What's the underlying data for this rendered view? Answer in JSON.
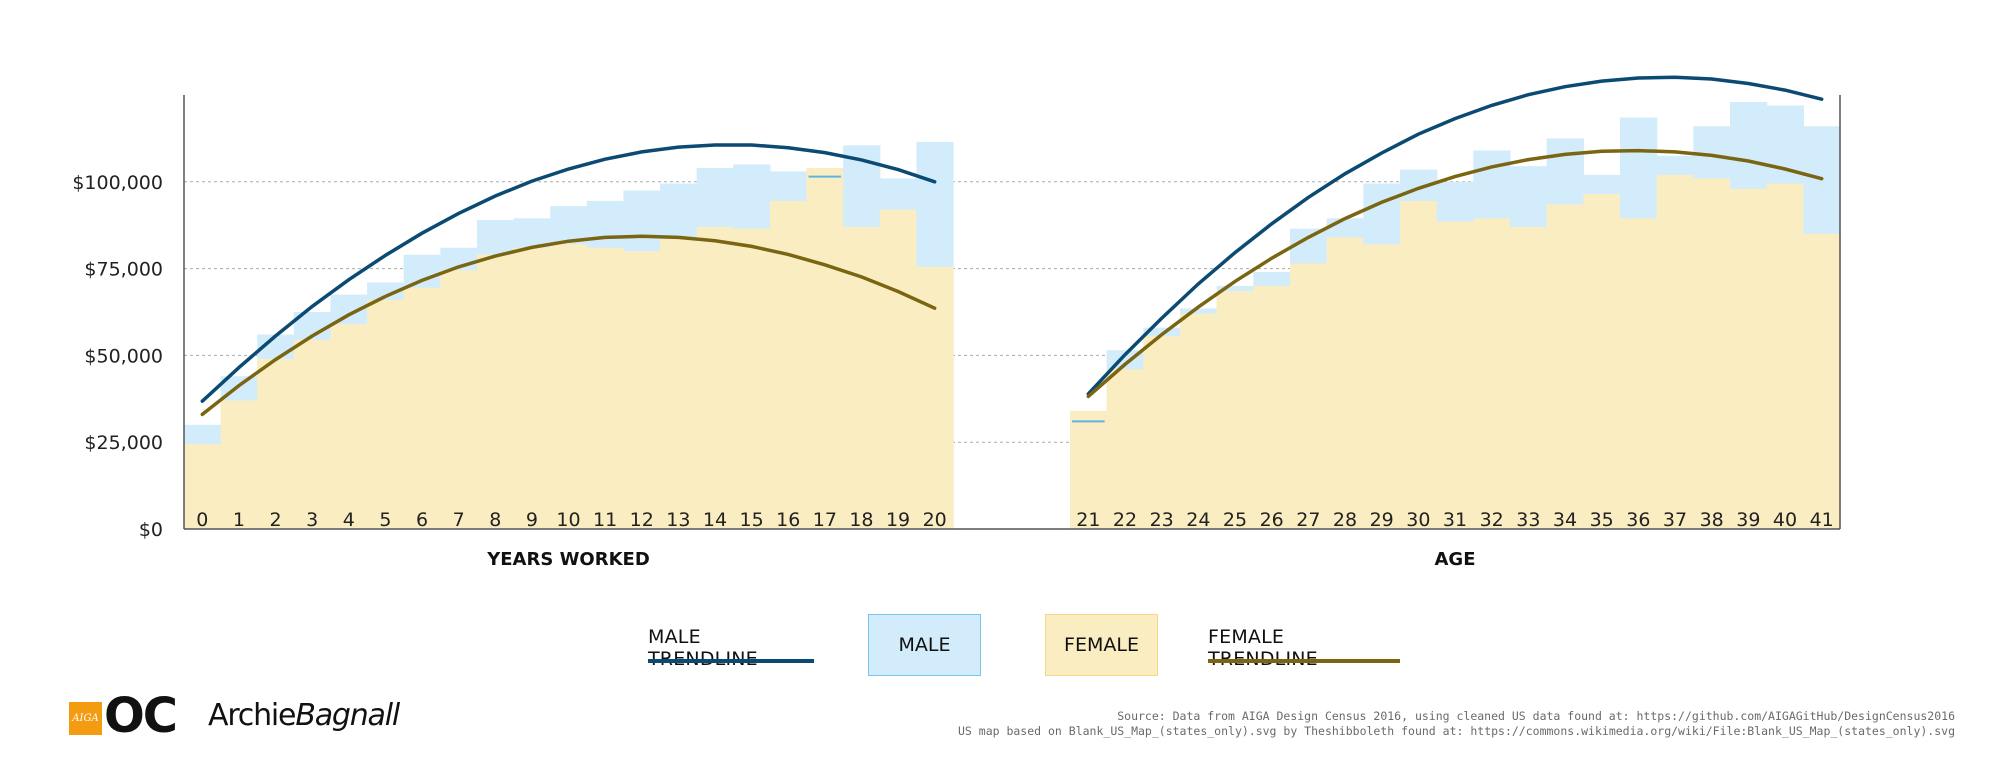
{
  "colors": {
    "male_bar": "#d2ecfb",
    "female_bar": "#fbedc2",
    "male_trend": "#0b4a72",
    "female_trend": "#7a6512",
    "grid": "#aaaaaa",
    "axis": "#555555"
  },
  "legend": {
    "male_trendline": "MALE TRENDLINE",
    "male": "MALE",
    "female": "FEMALE",
    "female_trendline": "FEMALE TRENDLINE"
  },
  "logos": {
    "aiga": "AIGA",
    "oc": "OC",
    "archie_first": "Archie",
    "archie_last": "Bagnall"
  },
  "source": {
    "line1": "Source: Data from AIGA Design Census 2016, using cleaned US data found at: https://github.com/AIGAGitHub/DesignCensus2016",
    "line2": "US map based on Blank_US_Map_(states_only).svg by Theshibboleth found at: https://commons.wikimedia.org/wiki/File:Blank_US_Map_(states_only).svg"
  },
  "chart_data": [
    {
      "type": "bar",
      "xlabel": "YEARS WORKED",
      "ylabel": "",
      "ylim": [
        0,
        125000
      ],
      "yticks": [
        "$0",
        "$25,000",
        "$50,000",
        "$75,000",
        "$100,000"
      ],
      "ytick_values": [
        0,
        25000,
        50000,
        75000,
        100000
      ],
      "grid": true,
      "categories": [
        "0",
        "1",
        "2",
        "3",
        "4",
        "5",
        "6",
        "7",
        "8",
        "9",
        "10",
        "11",
        "12",
        "13",
        "14",
        "15",
        "16",
        "17",
        "18",
        "19",
        "20"
      ],
      "series": [
        {
          "name": "MALE",
          "values": [
            30000,
            44000,
            56000,
            62500,
            67500,
            71000,
            79000,
            81000,
            89000,
            89500,
            93000,
            94500,
            97500,
            99500,
            104000,
            105000,
            103000,
            101500,
            110500,
            101000,
            111500
          ]
        },
        {
          "name": "FEMALE",
          "values": [
            24500,
            37000,
            49000,
            54500,
            59000,
            66000,
            69500,
            74500,
            79000,
            81000,
            82000,
            81000,
            80000,
            83500,
            87000,
            86500,
            94500,
            104000,
            87000,
            92000,
            75500
          ]
        },
        {
          "name": "MALE TRENDLINE",
          "values": [
            36800,
            46500,
            55600,
            64100,
            71800,
            78800,
            85200,
            90900,
            95900,
            100200,
            103700,
            106500,
            108600,
            110000,
            110600,
            110600,
            109800,
            108400,
            106300,
            103500,
            100000
          ]
        },
        {
          "name": "FEMALE TRENDLINE",
          "values": [
            33000,
            41300,
            48800,
            55600,
            61700,
            67000,
            71600,
            75500,
            78600,
            81100,
            82900,
            84000,
            84300,
            84000,
            83000,
            81400,
            79100,
            76100,
            72600,
            68400,
            63600
          ]
        }
      ]
    },
    {
      "type": "bar",
      "xlabel": "AGE",
      "ylabel": "",
      "ylim": [
        0,
        125000
      ],
      "grid": true,
      "categories": [
        "21",
        "22",
        "23",
        "24",
        "25",
        "26",
        "27",
        "28",
        "29",
        "30",
        "31",
        "32",
        "33",
        "34",
        "35",
        "36",
        "37",
        "38",
        "39",
        "40",
        "41"
      ],
      "series": [
        {
          "name": "MALE",
          "values": [
            31000,
            51500,
            58000,
            63500,
            70000,
            74000,
            86500,
            89500,
            99500,
            103500,
            100000,
            109000,
            104500,
            112500,
            102000,
            118500,
            107500,
            116000,
            123000,
            122000,
            116000
          ]
        },
        {
          "name": "FEMALE",
          "values": [
            34000,
            46000,
            55500,
            62000,
            68500,
            70000,
            76500,
            84000,
            82000,
            94500,
            88500,
            89500,
            87000,
            93500,
            96500,
            89500,
            102000,
            101000,
            98000,
            99500,
            85000
          ]
        },
        {
          "name": "MALE TRENDLINE",
          "values": [
            38900,
            50200,
            60700,
            70600,
            79600,
            87900,
            95500,
            102300,
            108300,
            113700,
            118200,
            122000,
            125100,
            127400,
            129000,
            129900,
            130100,
            129600,
            128300,
            126400,
            123800
          ]
        },
        {
          "name": "FEMALE TRENDLINE",
          "values": [
            38200,
            47400,
            56000,
            63900,
            71300,
            78000,
            84000,
            89400,
            94100,
            98100,
            101500,
            104300,
            106400,
            107900,
            108800,
            109000,
            108600,
            107600,
            106000,
            103700,
            100900
          ]
        }
      ]
    }
  ]
}
